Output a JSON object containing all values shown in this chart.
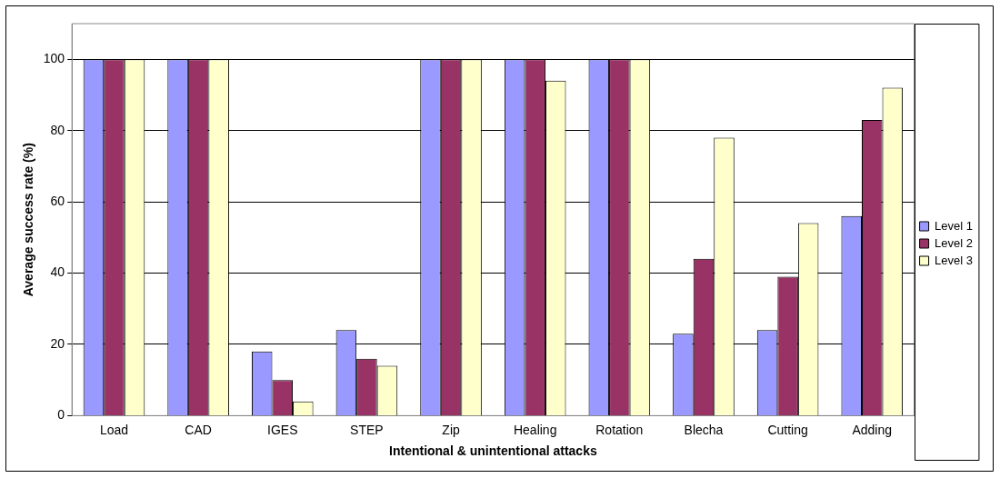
{
  "chart_data": {
    "type": "bar",
    "xlabel": "Intentional & unintentional attacks",
    "ylabel": "Average success rate (%)",
    "categories": [
      "Load",
      "CAD",
      "IGES",
      "STEP",
      "Zip",
      "Healing",
      "Rotation",
      "Blecha",
      "Cutting",
      "Adding"
    ],
    "series": [
      {
        "name": "Level 1",
        "color": "#9999ff",
        "values": [
          100,
          100,
          18,
          24,
          100,
          100,
          100,
          23,
          24,
          56
        ]
      },
      {
        "name": "Level 2",
        "color": "#993366",
        "values": [
          100,
          100,
          10,
          16,
          100,
          100,
          100,
          44,
          39,
          83
        ]
      },
      {
        "name": "Level 3",
        "color": "#ffffcc",
        "values": [
          100,
          100,
          4,
          14,
          100,
          94,
          100,
          78,
          54,
          92
        ]
      }
    ],
    "ylim": [
      0,
      110
    ],
    "yticks": [
      0,
      20,
      40,
      60,
      80,
      100
    ],
    "grid": "y",
    "legend": "right"
  }
}
